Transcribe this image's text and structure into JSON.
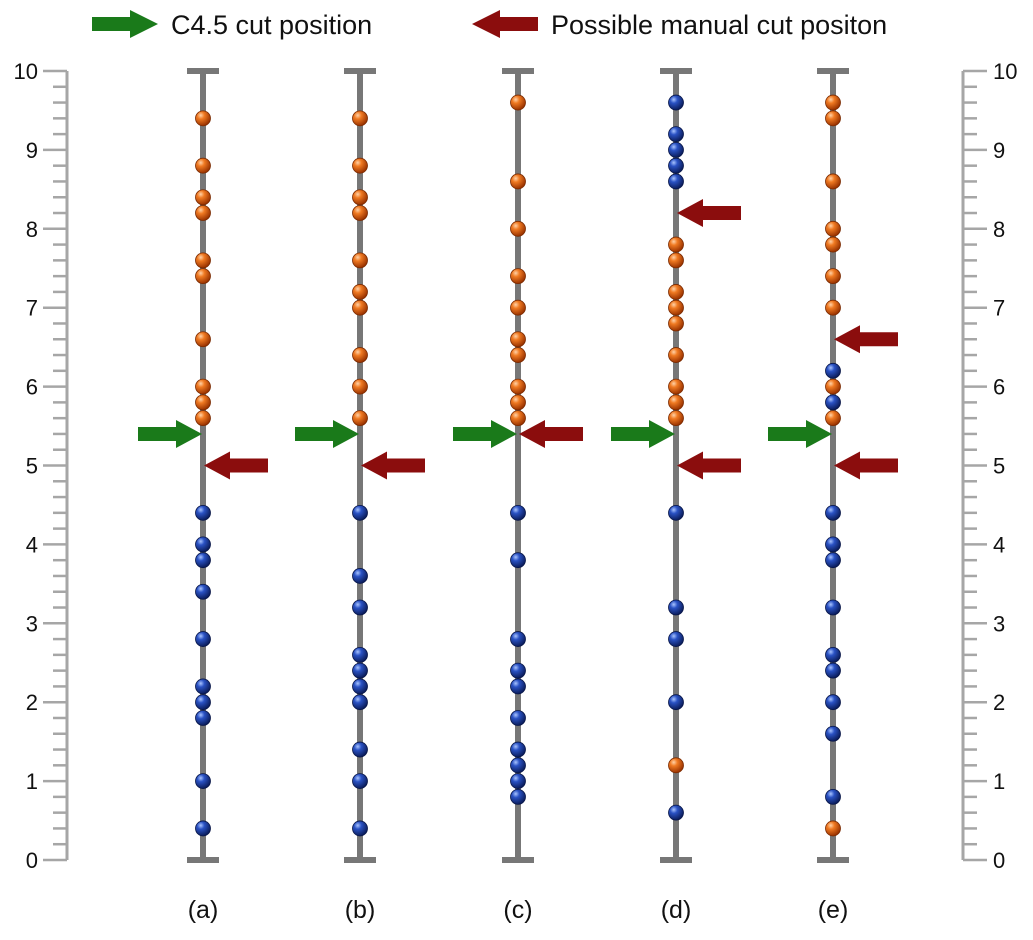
{
  "legend": {
    "c45_label": "C4.5 cut position",
    "manual_label": "Possible manual cut positon"
  },
  "colors": {
    "axis": "#777777",
    "ruler": "#a6a6a6",
    "c45_arrow": "#1a7a1a",
    "manual_arrow": "#8b0d0d",
    "orange_ball": "#e8620e",
    "blue_ball": "#1c3f9c"
  },
  "chart_data": {
    "type": "scatter",
    "y_range": [
      0,
      10
    ],
    "y_ticks": [
      "0",
      "1",
      "2",
      "3",
      "4",
      "5",
      "6",
      "7",
      "8",
      "9",
      "10"
    ],
    "columns": [
      {
        "label": "(a)",
        "orange": [
          9.4,
          8.8,
          8.4,
          8.2,
          7.6,
          7.4,
          6.6,
          6.0,
          5.8,
          5.6
        ],
        "blue": [
          4.4,
          4.0,
          3.8,
          3.4,
          2.8,
          2.2,
          2.0,
          1.8,
          1.0,
          0.4
        ],
        "c45_cut": 5.4,
        "manual_cuts": [
          5.0
        ]
      },
      {
        "label": "(b)",
        "orange": [
          9.4,
          8.8,
          8.4,
          8.2,
          7.6,
          7.2,
          7.0,
          6.4,
          6.0,
          5.6
        ],
        "blue": [
          4.4,
          3.6,
          3.2,
          2.6,
          2.4,
          2.2,
          2.0,
          1.4,
          1.0,
          0.4
        ],
        "c45_cut": 5.4,
        "manual_cuts": [
          5.0
        ]
      },
      {
        "label": "(c)",
        "orange": [
          9.6,
          8.6,
          8.0,
          7.4,
          7.0,
          6.6,
          6.4,
          6.0,
          5.8,
          5.6
        ],
        "blue": [
          4.4,
          3.8,
          2.8,
          2.4,
          2.2,
          1.8,
          1.4,
          1.2,
          1.0,
          0.8
        ],
        "c45_cut": 5.4,
        "manual_cuts": [
          5.4
        ]
      },
      {
        "label": "(d)",
        "orange": [
          7.8,
          7.6,
          7.2,
          7.0,
          6.8,
          6.4,
          6.0,
          5.8,
          5.6,
          1.2
        ],
        "blue": [
          9.6,
          9.2,
          9.0,
          8.8,
          8.6,
          4.4,
          3.2,
          2.8,
          2.0,
          0.6
        ],
        "c45_cut": 5.4,
        "manual_cuts": [
          8.2,
          5.0
        ]
      },
      {
        "label": "(e)",
        "orange": [
          9.6,
          9.4,
          8.6,
          8.0,
          7.8,
          7.4,
          7.0,
          6.0,
          5.6,
          0.4
        ],
        "blue": [
          6.2,
          5.8,
          4.4,
          4.0,
          3.8,
          3.2,
          2.6,
          2.4,
          2.0,
          1.6,
          0.8
        ],
        "c45_cut": 5.4,
        "manual_cuts": [
          6.6,
          5.0
        ]
      }
    ]
  }
}
